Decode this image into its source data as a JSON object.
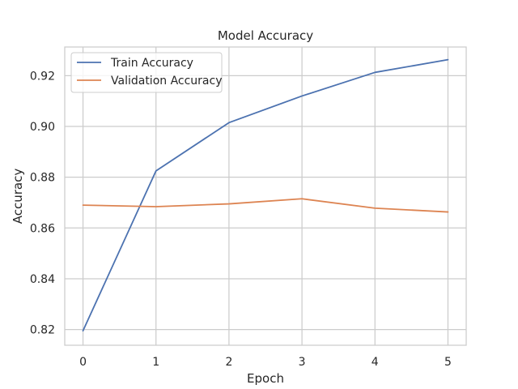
{
  "chart_data": {
    "type": "line",
    "title": "Model Accuracy",
    "xlabel": "Epoch",
    "ylabel": "Accuracy",
    "x": [
      0,
      1,
      2,
      3,
      4,
      5
    ],
    "xticks": [
      "0",
      "1",
      "2",
      "3",
      "4",
      "5"
    ],
    "yticks": [
      "0.82",
      "0.84",
      "0.86",
      "0.88",
      "0.90",
      "0.92"
    ],
    "xlim": [
      -0.25,
      5.25
    ],
    "ylim": [
      0.8138,
      0.9313
    ],
    "grid": true,
    "legend_position": "upper-left",
    "series": [
      {
        "name": "Train Accuracy",
        "color": "#4c72b0",
        "values": [
          0.8195,
          0.8825,
          0.9015,
          0.912,
          0.9213,
          0.9263
        ]
      },
      {
        "name": "Validation Accuracy",
        "color": "#dd8452",
        "values": [
          0.869,
          0.8684,
          0.8695,
          0.8715,
          0.8678,
          0.8663
        ]
      }
    ]
  }
}
